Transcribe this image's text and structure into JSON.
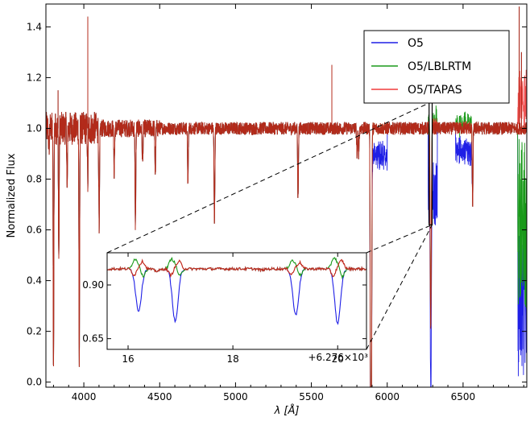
{
  "chart_data": [
    {
      "id": "main",
      "type": "line",
      "xlabel": "λ [Å]",
      "ylabel": "Normalized Flux",
      "xlim": [
        3750,
        6920
      ],
      "ylim": [
        -0.02,
        1.49
      ],
      "x_ticks": [
        4000,
        4500,
        5000,
        5500,
        6000,
        6500
      ],
      "y_ticks": [
        0.0,
        0.2,
        0.4,
        0.6,
        0.8,
        1.0,
        1.2,
        1.4
      ],
      "x_tick_labels": [
        "4000",
        "4500",
        "5000",
        "5500",
        "6000",
        "6500"
      ],
      "y_tick_labels": [
        "0.0",
        "0.2",
        "0.4",
        "0.6",
        "0.8",
        "1.0",
        "1.2",
        "1.4"
      ],
      "grid": false,
      "legend_position": "top-right",
      "colors": {
        "O5": "#1f1fe6",
        "O5/LBLRTM": "#1a9a1a",
        "O5/TAPAS": "#f03c3c",
        "overlap": "#b22a1a"
      },
      "series": [
        {
          "name": "O5",
          "continuum": 1.0,
          "noise": 0.025,
          "absorption_lines": [
            [
              3770,
              0.92
            ],
            [
              3800,
              0.0
            ],
            [
              3835,
              0.48
            ],
            [
              3890,
              0.74
            ],
            [
              3970,
              0.05
            ],
            [
              4026,
              0.78
            ],
            [
              4101,
              0.58
            ],
            [
              4200,
              0.83
            ],
            [
              4340,
              0.62
            ],
            [
              4387,
              0.86
            ],
            [
              4471,
              0.82
            ],
            [
              4686,
              0.78
            ],
            [
              4861,
              0.62
            ],
            [
              5412,
              0.72
            ],
            [
              5801,
              0.9
            ],
            [
              5812,
              0.9
            ],
            [
              5890,
              0.0
            ],
            [
              5896,
              0.0
            ],
            [
              6284,
              0.64
            ],
            [
              6287,
              0.55
            ],
            [
              6290,
              0.7
            ],
            [
              6563,
              0.69
            ]
          ],
          "telluric_bands": [
            [
              5885,
              6000,
              0.85
            ],
            [
              6270,
              6330,
              0.62
            ],
            [
              6450,
              6560,
              0.87
            ],
            [
              6860,
              6920,
              0.02
            ]
          ],
          "emission_spikes": [
            [
              4026,
              1.44
            ],
            [
              3830,
              1.15
            ],
            [
              5635,
              1.25
            ],
            [
              6870,
              1.48
            ],
            [
              6885,
              1.3
            ]
          ]
        },
        {
          "name": "O5/LBLRTM",
          "continuum": 1.0,
          "noise": 0.025,
          "telluric_residuals": [
            [
              6270,
              6330,
              1.05
            ],
            [
              6450,
              6560,
              1.03
            ],
            [
              6860,
              6920,
              0.3
            ]
          ]
        },
        {
          "name": "O5/TAPAS",
          "continuum": 1.0,
          "noise": 0.025,
          "telluric_residuals": [
            [
              6270,
              6330,
              1.02
            ],
            [
              6450,
              6560,
              1.01
            ],
            [
              6860,
              6920,
              1.3
            ]
          ]
        }
      ],
      "zoom_source": {
        "x_range": [
          6276.0,
          6296.2
        ],
        "y_range": [
          0.62,
          1.1
        ]
      }
    },
    {
      "id": "inset",
      "type": "line",
      "x_offset_label": "+6.276×10³",
      "xlim": [
        15.6,
        20.55
      ],
      "ylim": [
        0.6,
        1.05
      ],
      "x_ticks": [
        16,
        18,
        20
      ],
      "y_ticks": [
        0.65,
        0.9
      ],
      "x_tick_labels": [
        "16",
        "18",
        "20"
      ],
      "y_tick_labels": [
        "0.65",
        "0.90"
      ],
      "grid": false,
      "lines": [
        {
          "center": 16.2,
          "depth_O5": 0.78,
          "residual": 0.035
        },
        {
          "center": 16.9,
          "depth_O5": 0.73,
          "residual": 0.035
        },
        {
          "center": 19.2,
          "depth_O5": 0.76,
          "residual": 0.03
        },
        {
          "center": 20.0,
          "depth_O5": 0.72,
          "residual": 0.04
        }
      ],
      "weak_features": [
        [
          16.55,
          0.965
        ],
        [
          18.55,
          0.97
        ],
        [
          20.3,
          0.975
        ]
      ],
      "continuum": 0.975
    }
  ]
}
